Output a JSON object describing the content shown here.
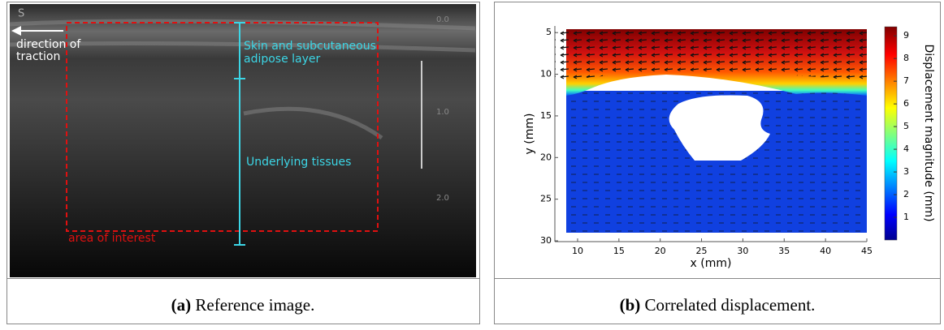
{
  "panels": [
    {
      "image": {
        "logo": "S",
        "arrow_label": [
          "direction of",
          "traction"
        ],
        "layer_label": [
          "Skin and subcutaneous",
          "adipose layer"
        ],
        "tissue_label": "Underlying tissues",
        "roi_label": "area of interest",
        "depth_labels": [
          "0.0",
          "1.0",
          "2.0"
        ]
      },
      "caption": {
        "label": "(a)",
        "text": "Reference image."
      }
    },
    {
      "plot": {
        "xlabel": "x (mm)",
        "ylabel": "y (mm)",
        "xlim": [
          7.25,
          45
        ],
        "ylim": [
          4.2,
          30
        ],
        "xticks": [
          10,
          15,
          20,
          25,
          30,
          35,
          40,
          45
        ],
        "yticks": [
          5,
          10,
          15,
          20,
          25,
          30
        ],
        "colorbar": {
          "label": "Displacement magnitude (mm)",
          "lim": [
            0,
            9.4
          ],
          "ticks": [
            1,
            2,
            3,
            4,
            5,
            6,
            7,
            8,
            9
          ]
        }
      },
      "caption": {
        "label": "(b)",
        "text": "Correlated displacement."
      }
    }
  ]
}
